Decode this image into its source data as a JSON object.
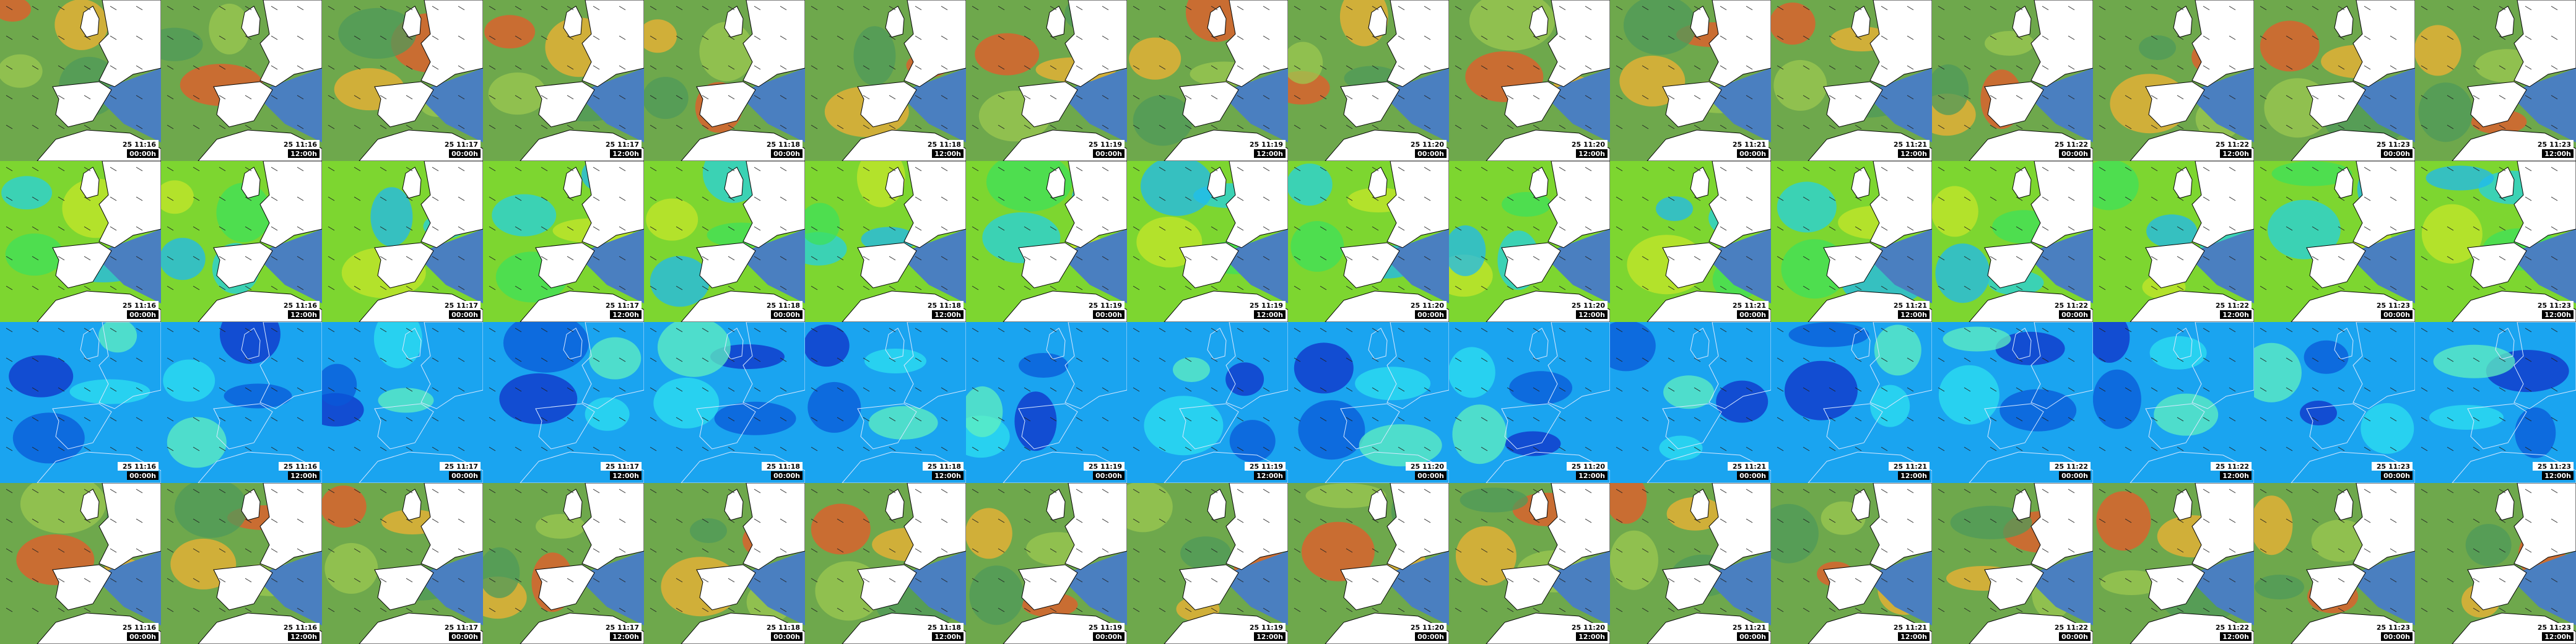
{
  "tiles": [
    [
      {
        "date": "25 11:16",
        "time": "00:00h"
      },
      {
        "date": "25 11:16",
        "time": "12:00h"
      },
      {
        "date": "25 11:17",
        "time": "00:00h"
      },
      {
        "date": "25 11:17",
        "time": "12:00h"
      },
      {
        "date": "25 11:18",
        "time": "00:00h"
      },
      {
        "date": "25 11:18",
        "time": "12:00h"
      },
      {
        "date": "25 11:19",
        "time": "00:00h"
      },
      {
        "date": "25 11:19",
        "time": "12:00h"
      },
      {
        "date": "25 11:20",
        "time": "00:00h"
      },
      {
        "date": "25 11:20",
        "time": "12:00h"
      },
      {
        "date": "25 11:21",
        "time": "00:00h"
      },
      {
        "date": "25 11:21",
        "time": "12:00h"
      },
      {
        "date": "25 11:22",
        "time": "00:00h"
      },
      {
        "date": "25 11:22",
        "time": "12:00h"
      },
      {
        "date": "25 11:23",
        "time": "00:00h"
      },
      {
        "date": "25 11:23",
        "time": "12:00h"
      }
    ],
    [
      {
        "date": "25 11:16",
        "time": "00:00h"
      },
      {
        "date": "25 11:16",
        "time": "12:00h"
      },
      {
        "date": "25 11:17",
        "time": "00:00h"
      },
      {
        "date": "25 11:17",
        "time": "12:00h"
      },
      {
        "date": "25 11:18",
        "time": "00:00h"
      },
      {
        "date": "25 11:18",
        "time": "12:00h"
      },
      {
        "date": "25 11:19",
        "time": "00:00h"
      },
      {
        "date": "25 11:19",
        "time": "12:00h"
      },
      {
        "date": "25 11:20",
        "time": "00:00h"
      },
      {
        "date": "25 11:20",
        "time": "12:00h"
      },
      {
        "date": "25 11:21",
        "time": "00:00h"
      },
      {
        "date": "25 11:21",
        "time": "12:00h"
      },
      {
        "date": "25 11:22",
        "time": "00:00h"
      },
      {
        "date": "25 11:22",
        "time": "12:00h"
      },
      {
        "date": "25 11:23",
        "time": "00:00h"
      },
      {
        "date": "25 11:23",
        "time": "12:00h"
      }
    ],
    [
      {
        "date": "25 11:16",
        "time": "00:00h"
      },
      {
        "date": "25 11:16",
        "time": "12:00h"
      },
      {
        "date": "25 11:17",
        "time": "00:00h"
      },
      {
        "date": "25 11:17",
        "time": "12:00h"
      },
      {
        "date": "25 11:18",
        "time": "00:00h"
      },
      {
        "date": "25 11:18",
        "time": "12:00h"
      },
      {
        "date": "25 11:19",
        "time": "00:00h"
      },
      {
        "date": "25 11:19",
        "time": "12:00h"
      },
      {
        "date": "25 11:20",
        "time": "00:00h"
      },
      {
        "date": "25 11:20",
        "time": "12:00h"
      },
      {
        "date": "25 11:21",
        "time": "00:00h"
      },
      {
        "date": "25 11:21",
        "time": "12:00h"
      },
      {
        "date": "25 11:22",
        "time": "00:00h"
      },
      {
        "date": "25 11:22",
        "time": "12:00h"
      },
      {
        "date": "25 11:23",
        "time": "00:00h"
      },
      {
        "date": "25 11:23",
        "time": "12:00h"
      }
    ],
    [
      {
        "date": "25 11:16",
        "time": "00:00h"
      },
      {
        "date": "25 11:16",
        "time": "12:00h"
      },
      {
        "date": "25 11:17",
        "time": "00:00h"
      },
      {
        "date": "25 11:17",
        "time": "12:00h"
      },
      {
        "date": "25 11:18",
        "time": "00:00h"
      },
      {
        "date": "25 11:18",
        "time": "12:00h"
      },
      {
        "date": "25 11:19",
        "time": "00:00h"
      },
      {
        "date": "25 11:19",
        "time": "12:00h"
      },
      {
        "date": "25 11:20",
        "time": "00:00h"
      },
      {
        "date": "25 11:20",
        "time": "12:00h"
      },
      {
        "date": "25 11:21",
        "time": "00:00h"
      },
      {
        "date": "25 11:21",
        "time": "12:00h"
      },
      {
        "date": "25 11:22",
        "time": "00:00h"
      },
      {
        "date": "25 11:22",
        "time": "12:00h"
      },
      {
        "date": "25 11:23",
        "time": "00:00h"
      },
      {
        "date": "25 11:23",
        "time": "12:00h"
      }
    ]
  ]
}
